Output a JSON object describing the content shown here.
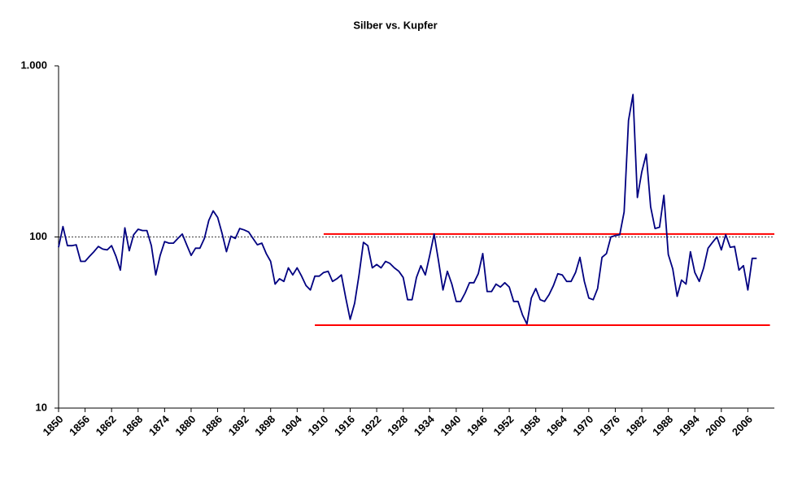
{
  "chart_data": {
    "type": "line",
    "title": "Silber vs. Kupfer",
    "log_y": true,
    "grid": true,
    "xlim": [
      1850,
      2012
    ],
    "ylim": [
      10,
      1000
    ],
    "yticks": [
      10,
      100,
      {
        "value": 1000,
        "label": "1.000"
      }
    ],
    "xticks": [
      1850,
      1856,
      1862,
      1868,
      1874,
      1880,
      1886,
      1892,
      1898,
      1904,
      1910,
      1916,
      1922,
      1928,
      1934,
      1940,
      1946,
      1952,
      1958,
      1964,
      1970,
      1976,
      1982,
      1988,
      1994,
      2000,
      2006
    ],
    "series": [
      {
        "color": "#000080",
        "x": [
          1850,
          1851,
          1852,
          1853,
          1854,
          1855,
          1856,
          1857,
          1858,
          1859,
          1860,
          1861,
          1862,
          1863,
          1864,
          1865,
          1866,
          1867,
          1868,
          1869,
          1870,
          1871,
          1872,
          1873,
          1874,
          1875,
          1876,
          1877,
          1878,
          1879,
          1880,
          1881,
          1882,
          1883,
          1884,
          1885,
          1886,
          1887,
          1888,
          1889,
          1890,
          1891,
          1892,
          1893,
          1894,
          1895,
          1896,
          1897,
          1898,
          1899,
          1900,
          1901,
          1902,
          1903,
          1904,
          1905,
          1906,
          1907,
          1908,
          1909,
          1910,
          1911,
          1912,
          1913,
          1914,
          1915,
          1916,
          1917,
          1918,
          1919,
          1920,
          1921,
          1922,
          1923,
          1924,
          1925,
          1926,
          1927,
          1928,
          1929,
          1930,
          1931,
          1932,
          1933,
          1934,
          1935,
          1936,
          1937,
          1938,
          1939,
          1940,
          1941,
          1942,
          1943,
          1944,
          1945,
          1946,
          1947,
          1948,
          1949,
          1950,
          1951,
          1952,
          1953,
          1954,
          1955,
          1956,
          1957,
          1958,
          1959,
          1960,
          1961,
          1962,
          1963,
          1964,
          1965,
          1966,
          1967,
          1968,
          1969,
          1970,
          1971,
          1972,
          1973,
          1974,
          1975,
          1976,
          1977,
          1978,
          1979,
          1980,
          1981,
          1982,
          1983,
          1984,
          1985,
          1986,
          1987,
          1988,
          1989,
          1990,
          1991,
          1992,
          1993,
          1994,
          1995,
          1996,
          1997,
          1998,
          1999,
          2000,
          2001,
          2002,
          2003,
          2004,
          2005,
          2006,
          2007,
          2008
        ],
        "values": [
          87,
          115,
          89,
          89,
          90,
          72,
          72,
          77,
          82,
          88,
          85,
          84,
          89,
          77,
          64,
          113,
          83,
          103,
          111,
          109,
          109,
          89,
          60,
          78,
          94,
          92,
          92,
          98,
          104,
          90,
          78,
          86,
          86,
          98,
          125,
          142,
          130,
          105,
          82,
          101,
          98,
          112,
          110,
          107,
          98,
          90,
          92,
          80,
          72,
          53,
          57,
          55,
          66,
          60,
          66,
          59,
          52,
          49,
          59,
          59,
          62,
          63,
          55,
          57,
          60,
          44,
          33,
          41,
          60,
          93,
          89,
          66,
          69,
          66,
          72,
          70,
          66,
          63,
          58,
          43,
          43,
          58,
          68,
          60,
          78,
          104,
          72,
          49,
          63,
          53,
          42,
          42,
          47,
          54,
          54,
          61,
          80,
          48,
          48,
          53,
          51,
          54,
          51,
          42,
          42,
          35,
          31,
          44,
          50,
          43,
          42,
          46,
          52,
          61,
          60,
          55,
          55,
          62,
          76,
          55,
          44,
          43,
          50,
          76,
          80,
          100,
          102,
          103,
          140,
          480,
          680,
          170,
          240,
          305,
          150,
          112,
          114,
          175,
          79,
          65,
          45,
          56,
          53,
          82,
          62,
          55,
          66,
          86,
          93,
          100,
          84,
          103,
          87,
          88,
          64,
          68,
          49,
          75,
          75
        ]
      }
    ],
    "reference_lines": [
      {
        "color": "#ff0000",
        "value": 104,
        "x": [
          1910,
          2012
        ]
      },
      {
        "color": "#ff0000",
        "value": 30.5,
        "x": [
          1908,
          2011
        ]
      }
    ]
  }
}
